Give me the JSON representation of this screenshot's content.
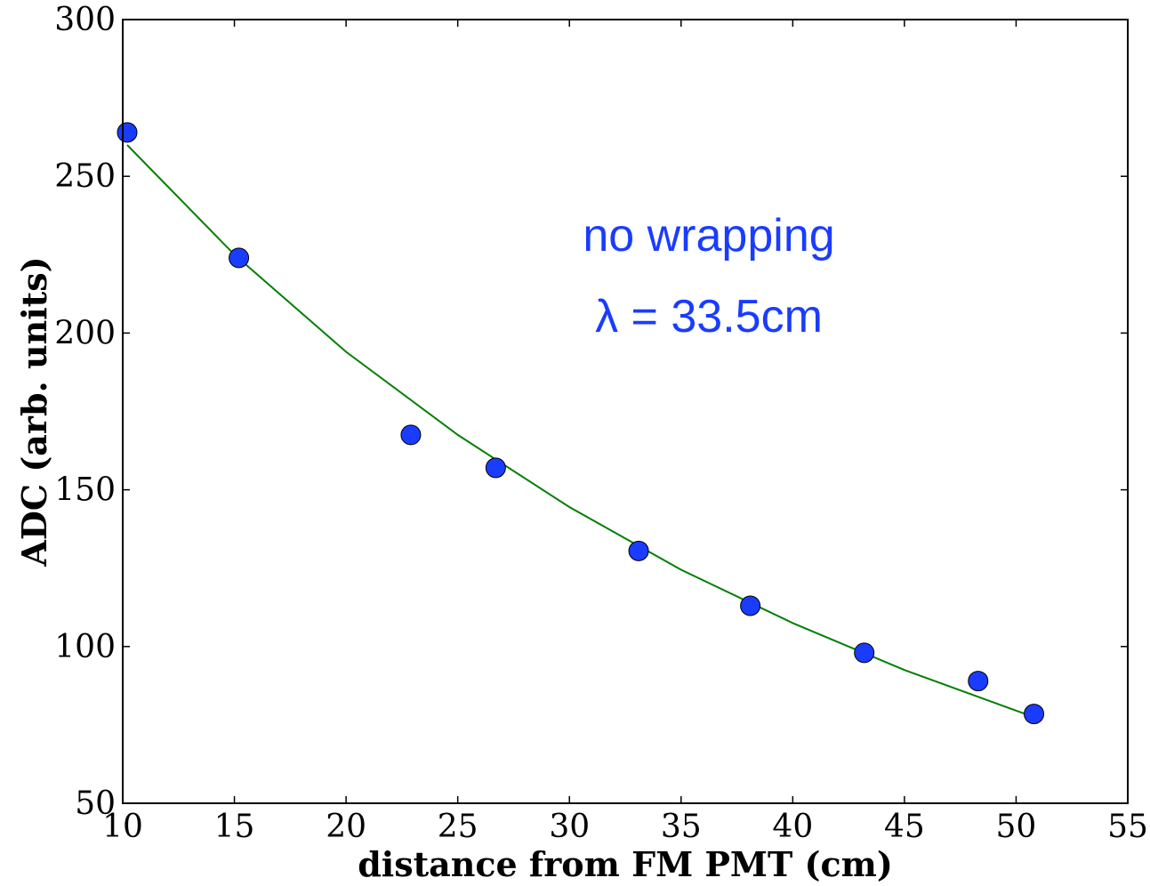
{
  "chart_data": {
    "type": "scatter",
    "xlabel": "distance from FM PMT (cm)",
    "ylabel": "ADC (arb. units)",
    "xlim": [
      10,
      55
    ],
    "ylim": [
      50,
      300
    ],
    "xticks": [
      10,
      15,
      20,
      25,
      30,
      35,
      40,
      45,
      50,
      55
    ],
    "yticks": [
      50,
      100,
      150,
      200,
      250,
      300
    ],
    "grid": false,
    "annotations": [
      "no wrapping",
      "λ = 33.5cm"
    ],
    "series": [
      {
        "kind": "scatter",
        "color": "#1a3cff",
        "x": [
          10.2,
          15.2,
          22.9,
          26.7,
          33.1,
          38.1,
          43.2,
          48.3,
          50.8
        ],
        "y": [
          264,
          224,
          167.5,
          157,
          130.5,
          113,
          98,
          89,
          78.5
        ]
      },
      {
        "kind": "line",
        "color": "#008000",
        "x": [
          10.2,
          15,
          20,
          25,
          30,
          35,
          40,
          45,
          50.8
        ],
        "y": [
          260,
          225,
          194,
          167.5,
          144.5,
          124.5,
          107.5,
          92.5,
          77.5
        ]
      }
    ]
  }
}
